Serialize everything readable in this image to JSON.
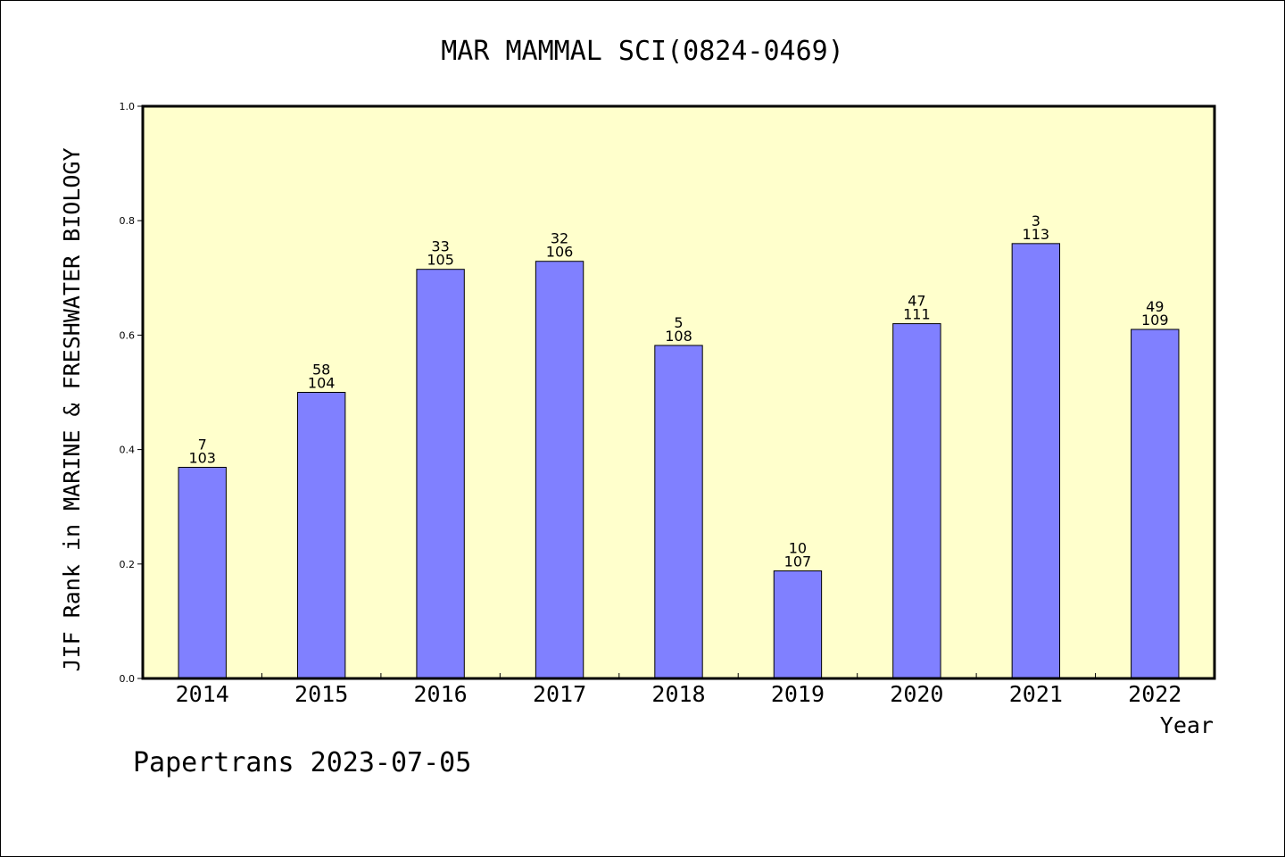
{
  "colors": {
    "plot_background": "#ffffcc",
    "bar_fill": "#8080ff",
    "bar_stroke": "#000000",
    "text": "#000000"
  },
  "chart_data": {
    "type": "bar",
    "title": "MAR MAMMAL SCI(0824-0469)",
    "xlabel": "Year",
    "ylabel": "JIF Rank in MARINE & FRESHWATER BIOLOGY",
    "footer": "Papertrans 2023-07-05",
    "ylim": [
      0,
      1
    ],
    "y_ticks": [
      "0.0",
      "0.2",
      "0.4",
      "0.6",
      "0.8",
      "1.0"
    ],
    "categories": [
      "2014",
      "2015",
      "2016",
      "2017",
      "2018",
      "2019",
      "2020",
      "2021",
      "2022"
    ],
    "values": [
      0.369,
      0.5,
      0.715,
      0.729,
      0.582,
      0.188,
      0.62,
      0.76,
      0.61
    ],
    "rank_labels": [
      "7",
      "58",
      "33",
      "32",
      "5",
      "10",
      "47",
      "3",
      "49"
    ],
    "total_labels": [
      "103",
      "104",
      "105",
      "106",
      "108",
      "107",
      "111",
      "113",
      "109"
    ],
    "grid": false,
    "legend": "none"
  }
}
